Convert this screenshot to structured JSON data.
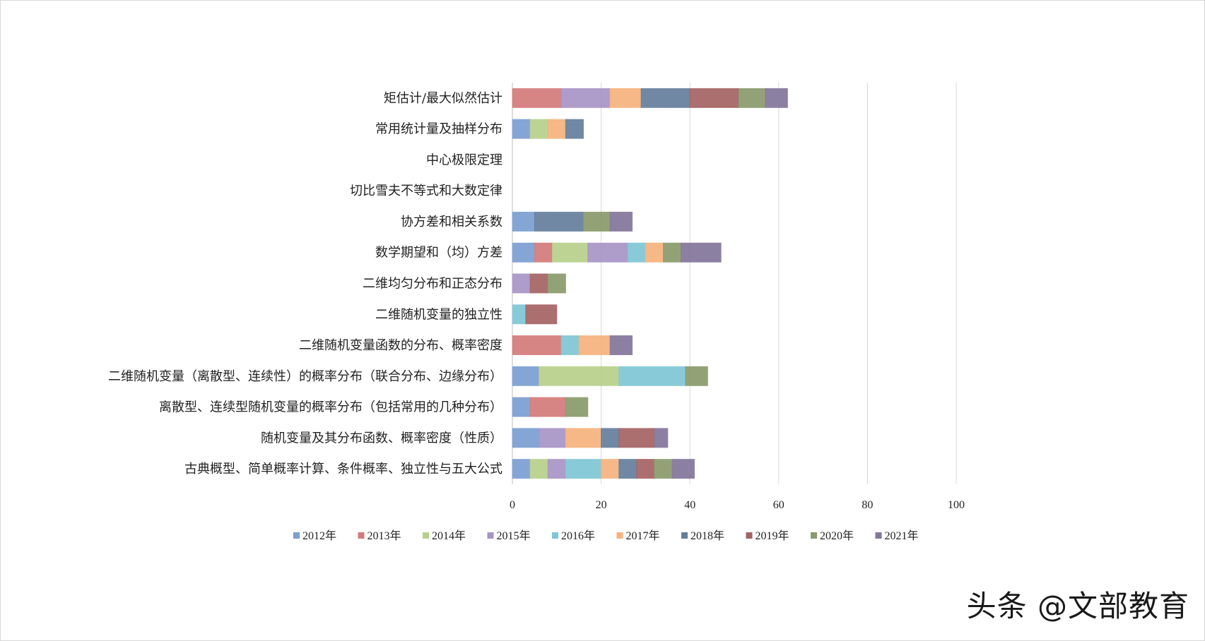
{
  "chart_data": {
    "type": "bar",
    "orientation": "horizontal",
    "stacked": true,
    "title": "",
    "xlabel": "",
    "ylabel": "",
    "xlim": [
      0,
      100
    ],
    "xticks": [
      0,
      20,
      40,
      60,
      80,
      100
    ],
    "grid": "vertical",
    "legend_position": "bottom",
    "categories": [
      "矩估计/最大似然估计",
      "常用统计量及抽样分布",
      "中心极限定理",
      "切比雪夫不等式和大数定律",
      "协方差和相关系数",
      "数学期望和（均）方差",
      "二维均匀分布和正态分布",
      "二维随机变量的独立性",
      "二维随机变量函数的分布、概率密度",
      "二维随机变量（离散型、连续性）的概率分布（联合分布、边缘分布）",
      "离散型、连续型随机变量的概率分布（包括常用的几种分布）",
      "随机变量及其分布函数、概率密度（性质）",
      "古典概型、简单概率计算、条件概率、独立性与五大公式"
    ],
    "series": [
      {
        "name": "2012年",
        "color": "#7b9fd1",
        "values": [
          0,
          4,
          0,
          0,
          5,
          5,
          0,
          0,
          0,
          6,
          4,
          6,
          4
        ]
      },
      {
        "name": "2013年",
        "color": "#d47a7a",
        "values": [
          11,
          0,
          0,
          0,
          0,
          4,
          0,
          0,
          11,
          0,
          8,
          0,
          0
        ]
      },
      {
        "name": "2014年",
        "color": "#b8d08c",
        "values": [
          0,
          4,
          0,
          0,
          0,
          8,
          0,
          0,
          0,
          18,
          0,
          0,
          4
        ]
      },
      {
        "name": "2015年",
        "color": "#a894c6",
        "values": [
          11,
          0,
          0,
          0,
          0,
          9,
          4,
          0,
          0,
          0,
          0,
          6,
          4
        ]
      },
      {
        "name": "2016年",
        "color": "#7fc6d5",
        "values": [
          0,
          0,
          0,
          0,
          0,
          4,
          0,
          3,
          4,
          15,
          0,
          0,
          8
        ]
      },
      {
        "name": "2017年",
        "color": "#f6b27c",
        "values": [
          7,
          4,
          0,
          0,
          0,
          4,
          0,
          0,
          7,
          0,
          0,
          8,
          4
        ]
      },
      {
        "name": "2018年",
        "color": "#647e9c",
        "values": [
          11,
          4,
          0,
          0,
          11,
          0,
          0,
          0,
          0,
          0,
          0,
          4,
          4
        ]
      },
      {
        "name": "2019年",
        "color": "#a46363",
        "values": [
          11,
          0,
          0,
          0,
          0,
          0,
          4,
          7,
          0,
          0,
          0,
          8,
          4
        ]
      },
      {
        "name": "2020年",
        "color": "#8a9b6b",
        "values": [
          6,
          0,
          0,
          0,
          6,
          4,
          4,
          0,
          0,
          5,
          5,
          0,
          4
        ]
      },
      {
        "name": "2021年",
        "color": "#83769b",
        "values": [
          5,
          0,
          0,
          0,
          5,
          9,
          0,
          0,
          5,
          0,
          0,
          3,
          5
        ]
      }
    ]
  },
  "watermark": {
    "text": "头条 @文部教育"
  }
}
